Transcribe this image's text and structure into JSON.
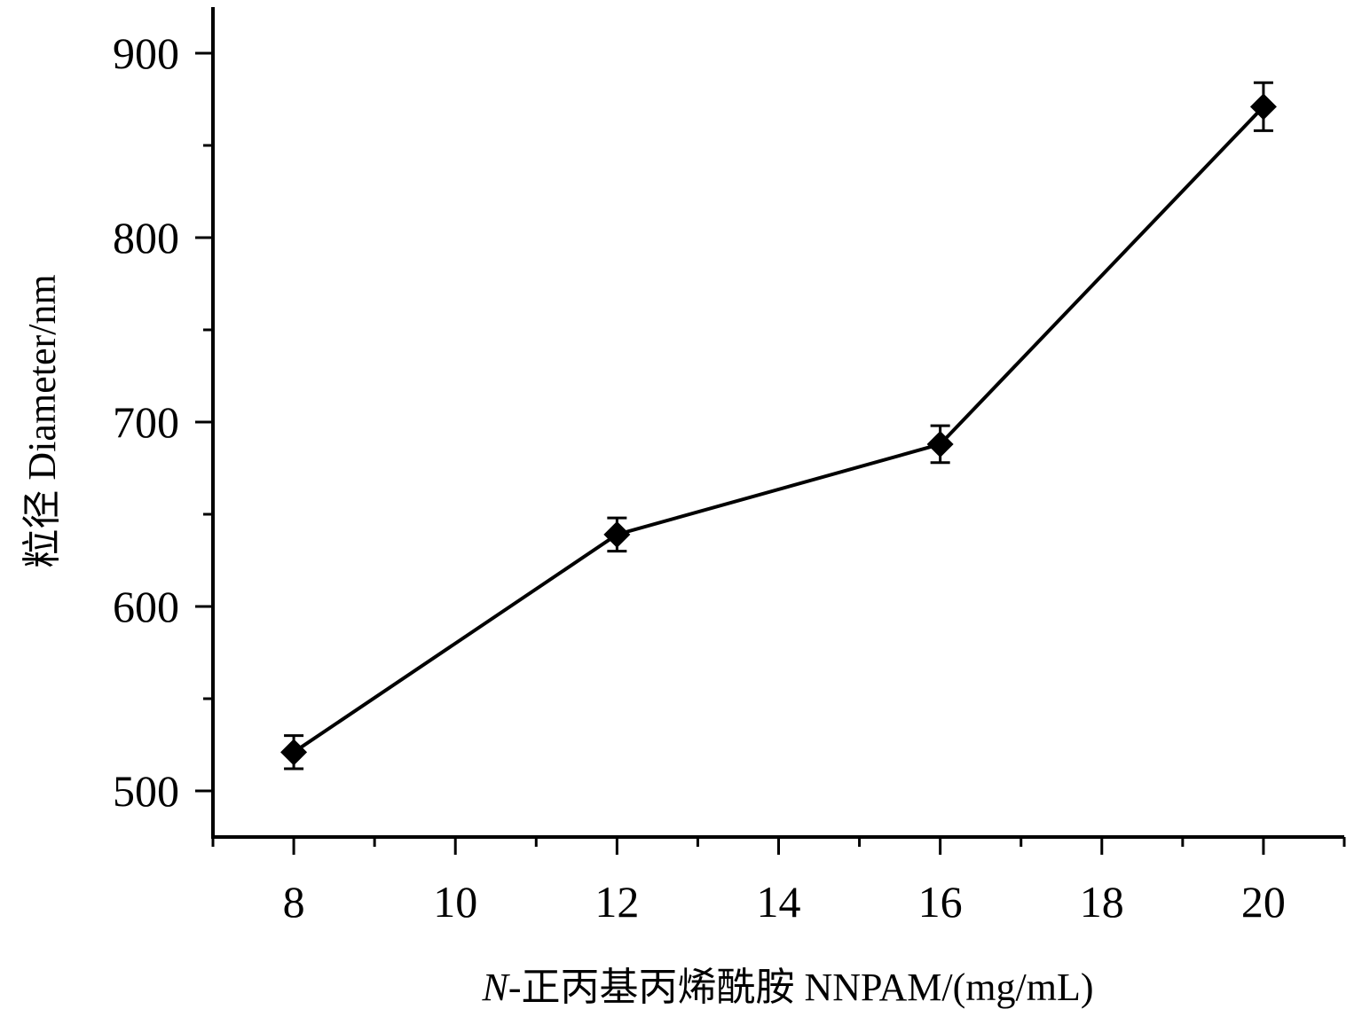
{
  "chart_data": {
    "type": "line",
    "xlabel": {
      "italic_prefix": "N",
      "rest": "-正丙基丙烯酰胺 NNPAM/(mg/mL)"
    },
    "ylabel": "粒径 Diameter/nm",
    "xlim": [
      7,
      21
    ],
    "ylim": [
      475,
      925
    ],
    "x_ticks": [
      8,
      10,
      12,
      14,
      16,
      18,
      20
    ],
    "y_ticks": [
      500,
      600,
      700,
      800,
      900
    ],
    "grid": false,
    "legend": "none",
    "series": [
      {
        "x": [
          8,
          12,
          16,
          20
        ],
        "y": [
          521,
          639,
          688,
          871
        ],
        "error": [
          9,
          9,
          10,
          13
        ],
        "marker": "diamond",
        "color": "#000000"
      }
    ]
  }
}
